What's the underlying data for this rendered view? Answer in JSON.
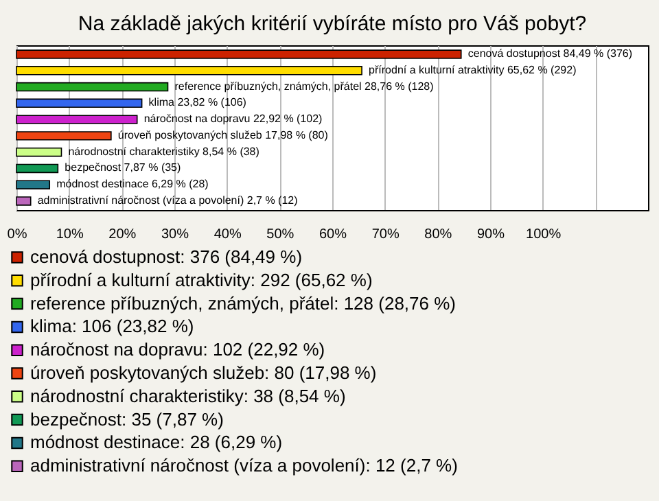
{
  "chart_data": {
    "type": "bar",
    "orientation": "horizontal",
    "title": "Na základě jakých kritérií vybíráte místo pro Váš pobyt?",
    "categories": [
      null,
      null,
      null,
      null,
      null,
      null,
      null,
      null,
      null,
      null
    ],
    "series": [
      {
        "name": "cenová dostupnost: 376 (84,49 %)",
        "color": "#cc2200",
        "values": [
          84.49,
          null,
          null,
          null,
          null,
          null,
          null,
          null,
          null,
          null
        ],
        "value_labels": [
          "cenová dostupnost 84,49 % (376)",
          null,
          null,
          null,
          null,
          null,
          null,
          null,
          null,
          null
        ]
      },
      {
        "name": "přírodní a kulturní atraktivity: 292 (65,62 %)",
        "color": "#ffdd00",
        "values": [
          null,
          65.62,
          null,
          null,
          null,
          null,
          null,
          null,
          null,
          null
        ],
        "value_labels": [
          null,
          "přírodní a kulturní atraktivity 65,62 % (292)",
          null,
          null,
          null,
          null,
          null,
          null,
          null,
          null
        ]
      },
      {
        "name": "reference příbuzných, známých, přátel: 128 (28,76 %)",
        "color": "#22aa22",
        "values": [
          null,
          null,
          28.76,
          null,
          null,
          null,
          null,
          null,
          null,
          null
        ],
        "value_labels": [
          null,
          null,
          "reference příbuzných, známých, přátel 28,76 % (128)",
          null,
          null,
          null,
          null,
          null,
          null,
          null
        ]
      },
      {
        "name": "klima: 106 (23,82 %)",
        "color": "#3366ee",
        "values": [
          null,
          null,
          null,
          23.82,
          null,
          null,
          null,
          null,
          null,
          null
        ],
        "value_labels": [
          null,
          null,
          null,
          "klima 23,82 % (106)",
          null,
          null,
          null,
          null,
          null,
          null
        ]
      },
      {
        "name": "náročnost na dopravu: 102 (22,92 %)",
        "color": "#cc22cc",
        "values": [
          null,
          null,
          null,
          null,
          22.92,
          null,
          null,
          null,
          null,
          null
        ],
        "value_labels": [
          null,
          null,
          null,
          null,
          "náročnost na dopravu 22,92 % (102)",
          null,
          null,
          null,
          null,
          null
        ]
      },
      {
        "name": "úroveň poskytovaných služeb: 80 (17,98 %)",
        "color": "#ee4411",
        "values": [
          null,
          null,
          null,
          null,
          null,
          17.98,
          null,
          null,
          null,
          null
        ],
        "value_labels": [
          null,
          null,
          null,
          null,
          null,
          "úroveň poskytovaných služeb 17,98 % (80)",
          null,
          null,
          null,
          null
        ]
      },
      {
        "name": "národnostní charakteristiky: 38 (8,54 %)",
        "color": "#ccff88",
        "values": [
          null,
          null,
          null,
          null,
          null,
          null,
          8.54,
          null,
          null,
          null
        ],
        "value_labels": [
          null,
          null,
          null,
          null,
          null,
          null,
          "národnostní charakteristiky 8,54 % (38)",
          null,
          null,
          null
        ]
      },
      {
        "name": "bezpečnost: 35 (7,87 %)",
        "color": "#119955",
        "values": [
          null,
          null,
          null,
          null,
          null,
          null,
          null,
          7.87,
          null,
          null
        ],
        "value_labels": [
          null,
          null,
          null,
          null,
          null,
          null,
          null,
          "bezpečnost 7,87 % (35)",
          null,
          null
        ]
      },
      {
        "name": "módnost destinace: 28 (6,29 %)",
        "color": "#227788",
        "values": [
          null,
          null,
          null,
          null,
          null,
          null,
          null,
          null,
          6.29,
          null
        ],
        "value_labels": [
          null,
          null,
          null,
          null,
          null,
          null,
          null,
          null,
          "módnost destinace 6,29 % (28)",
          null
        ]
      },
      {
        "name": "administrativní náročnost (víza a povolení): 12 (2,7 %)",
        "color": "#bb66bb",
        "values": [
          null,
          null,
          null,
          null,
          null,
          null,
          null,
          null,
          null,
          2.7
        ],
        "value_labels": [
          null,
          null,
          null,
          null,
          null,
          null,
          null,
          null,
          null,
          "administrativní náročnost (víza a povolení) 2,7 % (12)"
        ]
      }
    ],
    "xlim": [
      0,
      120
    ],
    "xticks": [
      {
        "value": 0,
        "label": "0%"
      },
      {
        "value": 10,
        "label": "10%"
      },
      {
        "value": 20,
        "label": "20%"
      },
      {
        "value": 30,
        "label": "30%"
      },
      {
        "value": 40,
        "label": "40%"
      },
      {
        "value": 50,
        "label": "50%"
      },
      {
        "value": 60,
        "label": "60%"
      },
      {
        "value": 70,
        "label": "70%"
      },
      {
        "value": 80,
        "label": "80%"
      },
      {
        "value": 90,
        "label": "90%"
      },
      {
        "value": 100,
        "label": "100%"
      },
      {
        "value": 110,
        "label": null
      }
    ],
    "grid": "x",
    "legend": "bottom"
  }
}
